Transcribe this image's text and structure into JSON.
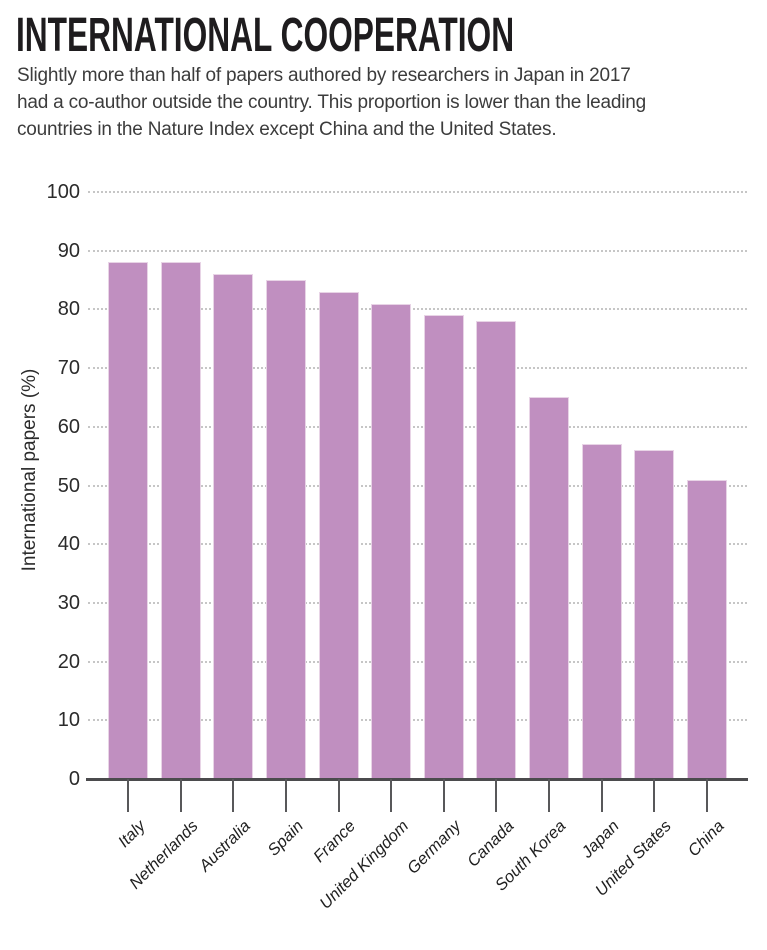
{
  "header": {
    "subtitle_lines": [
      "Slightly more than half of papers authored by researchers in Japan in 2017",
      "had a co-author outside the country. This proportion is lower than the leading",
      "countries in the Nature Index except China and the United States."
    ]
  },
  "chart_data": {
    "type": "bar",
    "title": "INTERNATIONAL COOPERATION",
    "categories": [
      "Italy",
      "Netherlands",
      "Australia",
      "Spain",
      "France",
      "United Kingdom",
      "Germany",
      "Canada",
      "South Korea",
      "Japan",
      "United States",
      "China"
    ],
    "values": [
      88,
      88,
      86,
      85,
      83,
      81,
      79,
      78,
      65,
      57,
      56,
      51
    ],
    "xlabel": "",
    "ylabel": "International papers (%)",
    "ylim": [
      0,
      100
    ],
    "ytick_step": 10,
    "grid": "horizontal-dotted",
    "legend": "none",
    "bar_color": "#c08fc0",
    "bar_border_color": "#e8d4e6",
    "gridline_color": "#c6c6c6",
    "axis_color": "#4b4b4d",
    "text_color": "#2b2b2b"
  }
}
